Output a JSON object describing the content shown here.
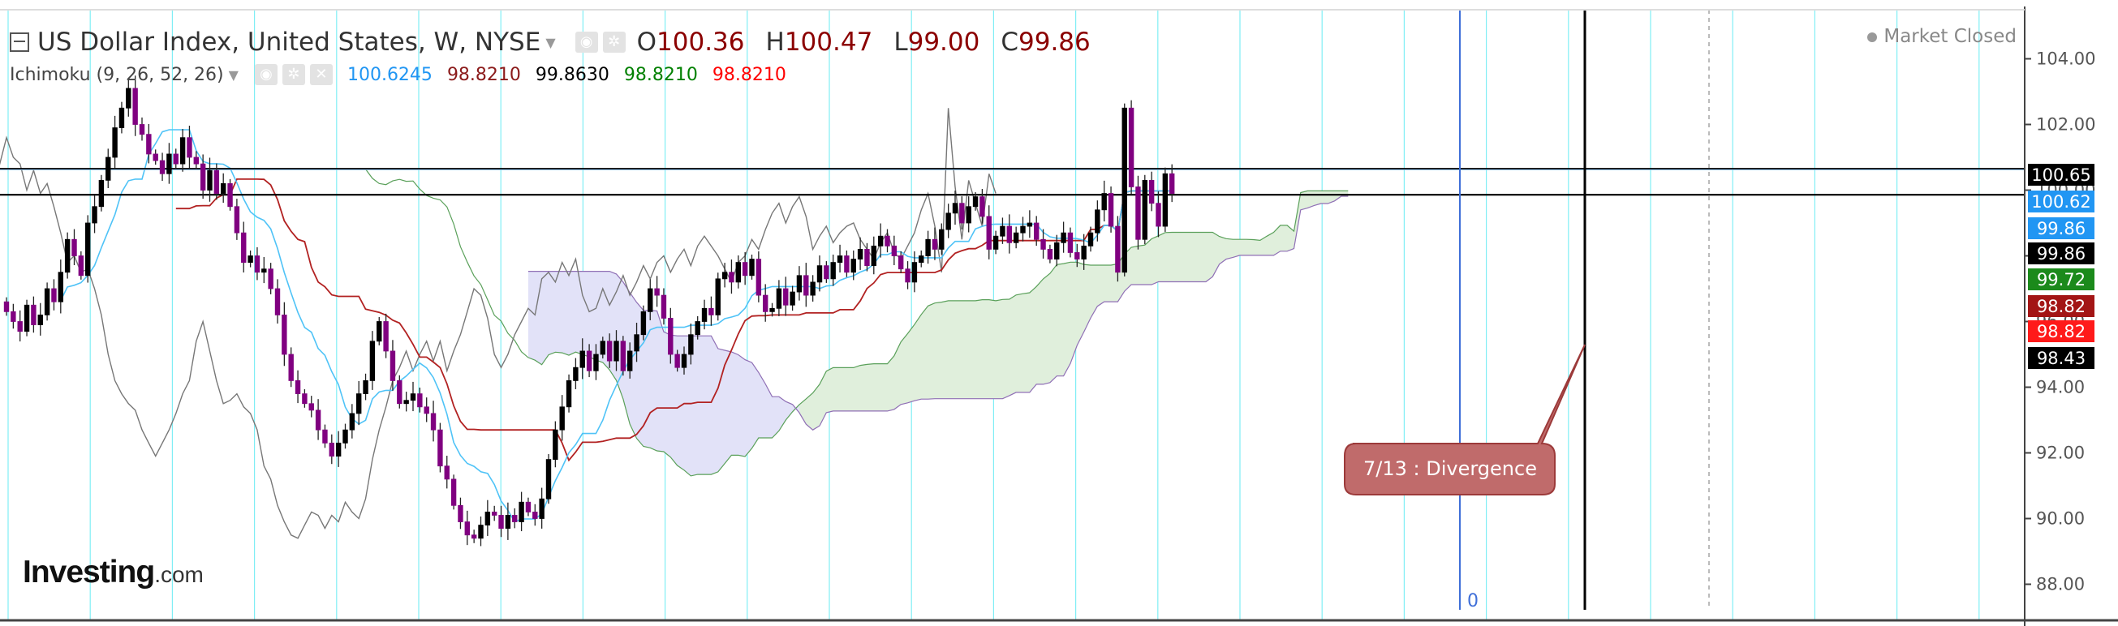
{
  "header": {
    "symbol": "US Dollar Index, United States, W, NYSE",
    "open_label": "O",
    "open": "100.36",
    "high_label": "H",
    "high": "100.47",
    "low_label": "L",
    "low": "99.00",
    "close_label": "C",
    "close": "99.86"
  },
  "indicator": {
    "name": "Ichimoku (9, 26, 52, 26)",
    "values": [
      {
        "text": "100.6245",
        "color": "#2196f3"
      },
      {
        "text": "98.8210",
        "color": "#8b1a1a"
      },
      {
        "text": "99.8630",
        "color": "#000000"
      },
      {
        "text": "98.8210",
        "color": "#008000"
      },
      {
        "text": "98.8210",
        "color": "#ff0000"
      }
    ]
  },
  "status": {
    "market": "Market Closed"
  },
  "brand": {
    "name": "Investing",
    "suffix": ".com"
  },
  "annotation": {
    "text": "7/13 : Divergence"
  },
  "cursor_label": "0",
  "price_badges": [
    {
      "text": "100.65",
      "value": 100.65,
      "bg": "#000000",
      "fg": "#ffffff"
    },
    {
      "text": "100.62",
      "value": 100.62,
      "bg": "#2196f3",
      "fg": "#ffffff"
    },
    {
      "text": "99.86",
      "value": 99.86,
      "bg": "#2196f3",
      "fg": "#ffffff"
    },
    {
      "text": "99.86",
      "value": 99.86,
      "bg": "#000000",
      "fg": "#ffffff"
    },
    {
      "text": "99.72",
      "value": 99.72,
      "bg": "#1b8a1b",
      "fg": "#ffffff"
    },
    {
      "text": "98.82",
      "value": 98.82,
      "bg": "#a31515",
      "fg": "#ffffff"
    },
    {
      "text": "98.82",
      "value": 98.82,
      "bg": "#ff1a1a",
      "fg": "#ffffff"
    },
    {
      "text": "98.43",
      "value": 98.43,
      "bg": "#000000",
      "fg": "#ffffff"
    }
  ],
  "chart_data": {
    "type": "candlestick",
    "yaxis_ticks": [
      "104.00",
      "102.00",
      "100.00",
      "98.00",
      "96.00",
      "94.00",
      "92.00",
      "90.00",
      "88.00"
    ],
    "ylim": [
      87.5,
      104.8
    ],
    "horizontal_lines": [
      100.65,
      99.86
    ],
    "colors": {
      "up": "#000000",
      "down": "#800080",
      "tenkan": "#4fc3f7",
      "kijun": "#b22222",
      "chikou": "#777777",
      "cloud_bull": "#e0efdc",
      "cloud_bear": "#e2e2f8",
      "cloud_bull_edge": "#5aa05a",
      "cloud_bear_edge": "#8f6fb5"
    },
    "closes": [
      96.3,
      96.0,
      95.7,
      96.5,
      95.9,
      96.2,
      97.0,
      96.6,
      97.5,
      98.5,
      98.0,
      97.4,
      99.0,
      99.5,
      100.3,
      101.0,
      101.9,
      102.5,
      103.1,
      102.0,
      101.7,
      101.1,
      100.9,
      100.5,
      101.1,
      100.8,
      101.6,
      101.0,
      100.8,
      100.0,
      100.6,
      99.9,
      100.2,
      99.5,
      98.7,
      97.8,
      98.0,
      97.5,
      97.6,
      97.0,
      96.2,
      95.0,
      94.2,
      93.8,
      93.5,
      93.3,
      92.7,
      92.3,
      91.9,
      92.3,
      92.7,
      93.2,
      93.8,
      94.2,
      95.4,
      96.0,
      95.1,
      94.2,
      93.5,
      93.6,
      93.8,
      93.4,
      93.2,
      92.7,
      91.6,
      91.2,
      90.4,
      89.9,
      89.5,
      89.4,
      89.8,
      90.2,
      90.1,
      89.7,
      90.1,
      89.9,
      90.5,
      90.2,
      90.0,
      90.6,
      91.8,
      92.7,
      93.4,
      94.2,
      94.6,
      95.1,
      94.5,
      95.0,
      95.4,
      94.8,
      95.4,
      94.5,
      95.1,
      95.6,
      96.3,
      97.0,
      96.8,
      96.1,
      95.0,
      94.6,
      95.0,
      95.6,
      96.0,
      96.4,
      96.2,
      97.3,
      97.5,
      97.2,
      97.8,
      97.4,
      97.9,
      96.8,
      96.3,
      96.4,
      97.0,
      96.5,
      96.9,
      97.4,
      96.8,
      97.2,
      97.7,
      97.3,
      97.8,
      98.0,
      97.5,
      97.9,
      98.2,
      97.7,
      98.3,
      98.6,
      98.3,
      98.0,
      97.6,
      97.2,
      97.8,
      98.0,
      98.5,
      98.2,
      98.8,
      99.3,
      99.6,
      99.0,
      99.5,
      99.8,
      99.2,
      98.2,
      98.6,
      98.9,
      98.4,
      98.7,
      98.9,
      99.0,
      98.5,
      98.2,
      97.9,
      98.4,
      98.7,
      98.1,
      97.9,
      98.3,
      98.7,
      99.4,
      99.9,
      98.9,
      97.5,
      102.5,
      100.1,
      98.5,
      100.3,
      99.6,
      98.9,
      100.5,
      99.9
    ]
  }
}
